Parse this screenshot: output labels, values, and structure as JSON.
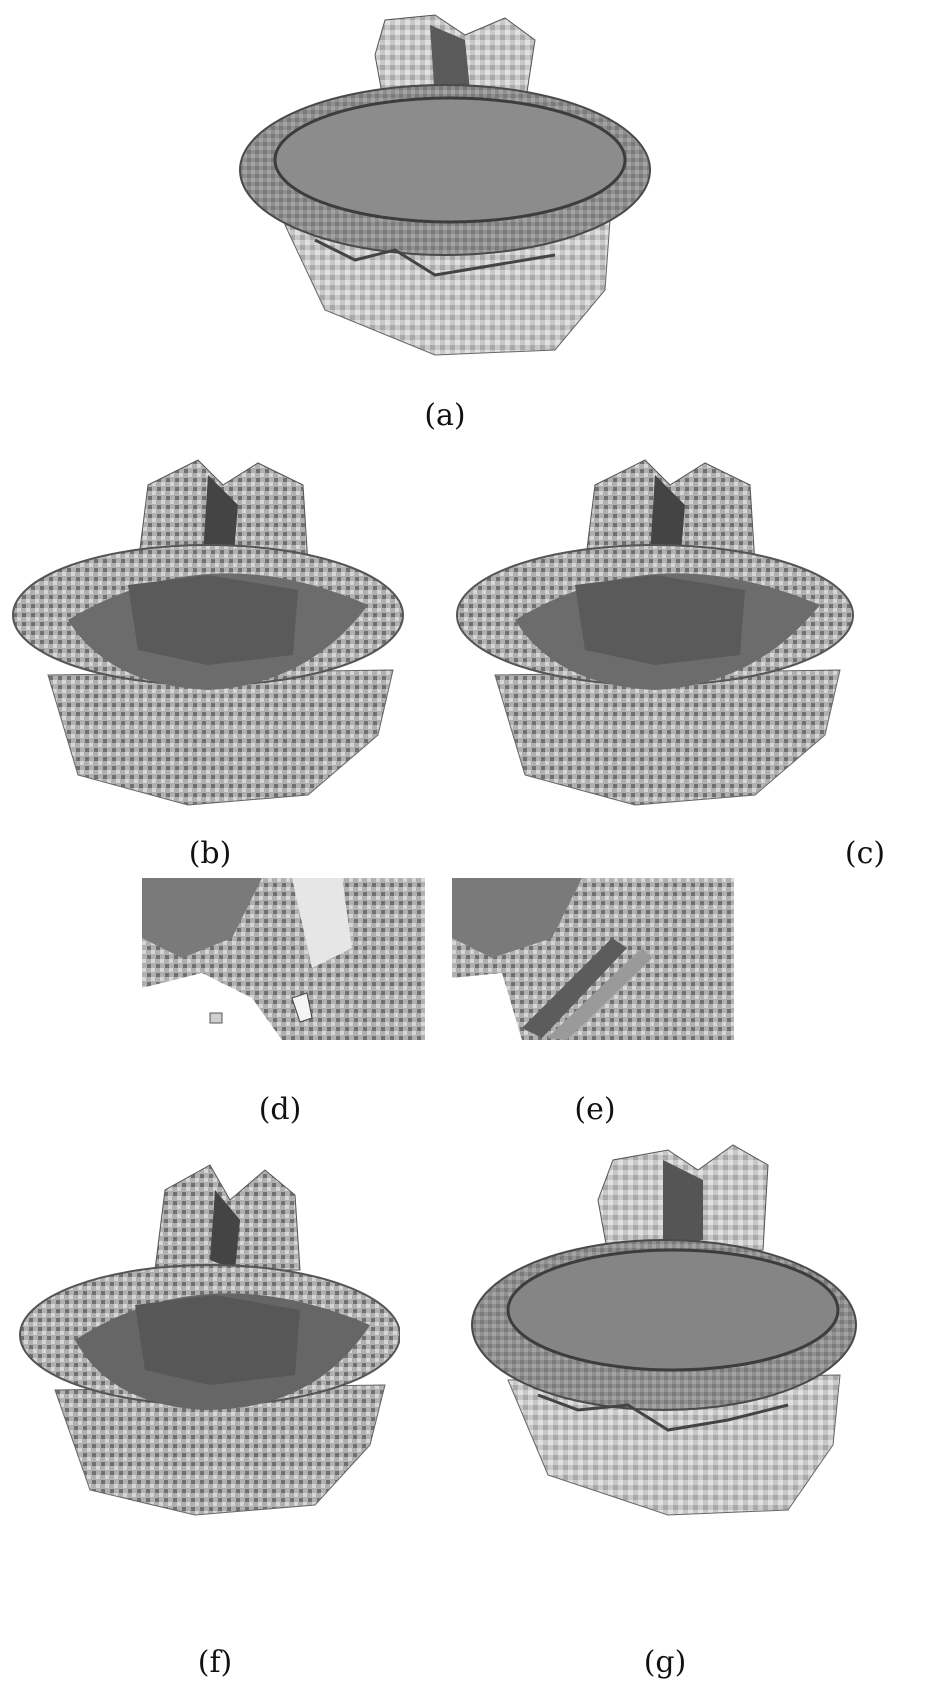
{
  "figure": {
    "panels": [
      {
        "id": "a",
        "label": "(a)",
        "subject": "voxel-object-surface-render"
      },
      {
        "id": "b",
        "label": "(b)",
        "subject": "voxel-object-surface-render-open"
      },
      {
        "id": "c",
        "label": "(c)",
        "subject": "voxel-object-surface-render-open"
      },
      {
        "id": "d",
        "label": "(d)",
        "subject": "voxel-surface-close-up"
      },
      {
        "id": "e",
        "label": "(e)",
        "subject": "voxel-surface-close-up"
      },
      {
        "id": "f",
        "label": "(f)",
        "subject": "voxel-object-surface-render-open"
      },
      {
        "id": "g",
        "label": "(g)",
        "subject": "voxel-object-surface-render"
      }
    ]
  },
  "colors": {
    "background": "#ffffff",
    "surface_dark": "#4a4a4a",
    "surface_mid": "#8a8a8a",
    "surface_light": "#d8d8d8",
    "surface_highlight": "#f2f2f2"
  }
}
